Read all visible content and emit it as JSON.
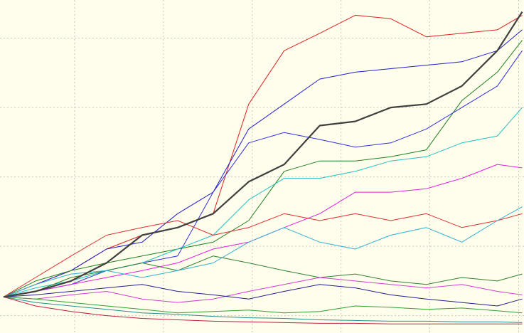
{
  "chart_data": {
    "type": "line",
    "xlim": [
      0.16,
      6.06
    ],
    "ylim": [
      0.75,
      5.55
    ],
    "xticks": [
      1,
      2,
      3,
      4,
      5,
      6
    ],
    "yticks": [
      1,
      2,
      3,
      4,
      5
    ],
    "grid": true,
    "x": [
      0.2,
      0.56,
      0.96,
      1.36,
      1.76,
      2.16,
      2.56,
      2.96,
      3.36,
      3.76,
      4.16,
      4.56,
      4.96,
      5.36,
      5.76,
      6.04
    ],
    "series": [
      {
        "color": "#e02020",
        "values": [
          1.27,
          1.45,
          1.65,
          1.96,
          2.16,
          2.27,
          2.47,
          4.05,
          4.82,
          5.07,
          5.33,
          5.28,
          5.02,
          5.07,
          5.12,
          5.33
        ]
      },
      {
        "color": "#2020d0",
        "values": [
          1.27,
          1.45,
          1.65,
          1.96,
          2.06,
          2.47,
          2.78,
          3.69,
          4.05,
          4.41,
          4.51,
          4.56,
          4.61,
          4.66,
          4.82,
          5.12
        ]
      },
      {
        "color": "#208020",
        "values": [
          1.27,
          1.5,
          1.65,
          1.76,
          1.86,
          1.96,
          2.06,
          2.37,
          3.08,
          3.23,
          3.23,
          3.29,
          3.39,
          4.1,
          4.51,
          4.97
        ]
      },
      {
        "color": "#3030e0",
        "values": [
          1.27,
          1.35,
          1.45,
          1.65,
          1.76,
          1.86,
          2.78,
          3.49,
          3.64,
          3.54,
          3.43,
          3.49,
          3.69,
          4.0,
          4.31,
          4.82
        ]
      },
      {
        "color": "#20c0c0",
        "values": [
          1.27,
          1.4,
          1.5,
          1.65,
          1.76,
          1.96,
          2.16,
          2.67,
          2.98,
          2.98,
          3.08,
          3.23,
          3.29,
          3.49,
          3.59,
          4.0
        ]
      },
      {
        "color": "#e020e0",
        "values": [
          1.27,
          1.35,
          1.45,
          1.55,
          1.65,
          1.76,
          1.96,
          2.06,
          2.27,
          2.47,
          2.78,
          2.78,
          2.83,
          2.98,
          3.18,
          3.13
        ]
      },
      {
        "color": "#e03030",
        "values": [
          1.27,
          1.55,
          1.86,
          2.16,
          2.27,
          2.37,
          2.16,
          2.27,
          2.47,
          2.37,
          2.47,
          2.37,
          2.47,
          2.27,
          2.37,
          2.47
        ]
      },
      {
        "color": "#308030",
        "values": [
          1.27,
          1.35,
          1.55,
          1.65,
          1.76,
          1.65,
          1.86,
          1.76,
          1.65,
          1.55,
          1.6,
          1.5,
          1.45,
          1.55,
          1.5,
          1.6
        ]
      },
      {
        "color": "#30b0d0",
        "values": [
          1.27,
          1.45,
          1.6,
          1.65,
          1.55,
          1.65,
          1.76,
          2.06,
          2.27,
          2.06,
          1.96,
          2.16,
          2.27,
          2.06,
          2.37,
          2.57
        ]
      },
      {
        "color": "#d040d0",
        "values": [
          1.27,
          1.24,
          1.3,
          1.35,
          1.24,
          1.19,
          1.24,
          1.35,
          1.45,
          1.55,
          1.5,
          1.45,
          1.4,
          1.45,
          1.35,
          1.3
        ]
      },
      {
        "color": "#202090",
        "values": [
          1.27,
          1.3,
          1.35,
          1.4,
          1.45,
          1.35,
          1.3,
          1.24,
          1.35,
          1.45,
          1.4,
          1.3,
          1.24,
          1.19,
          1.14,
          1.24
        ]
      },
      {
        "color": "#209090",
        "values": [
          1.27,
          1.19,
          1.14,
          1.09,
          1.04,
          1.02,
          0.99,
          0.97,
          0.96,
          0.94,
          0.93,
          0.92,
          0.92,
          0.91,
          0.91,
          0.9
        ]
      },
      {
        "color": "#c02040",
        "values": [
          1.27,
          1.14,
          1.06,
          1.0,
          0.96,
          0.94,
          0.92,
          0.91,
          0.9,
          0.89,
          0.89,
          0.88,
          0.88,
          0.88,
          0.88,
          0.88
        ]
      },
      {
        "color": "#30a030",
        "values": [
          1.27,
          1.24,
          1.19,
          1.14,
          1.09,
          1.04,
          1.06,
          1.08,
          1.04,
          1.06,
          1.14,
          1.12,
          1.09,
          1.11,
          1.07,
          1.04
        ]
      },
      {
        "color": "#404040",
        "linewidth": 2.2,
        "values": [
          1.27,
          1.35,
          1.5,
          1.76,
          2.16,
          2.27,
          2.47,
          2.93,
          3.18,
          3.74,
          3.8,
          4.0,
          4.05,
          4.31,
          4.82,
          5.38
        ]
      }
    ]
  }
}
